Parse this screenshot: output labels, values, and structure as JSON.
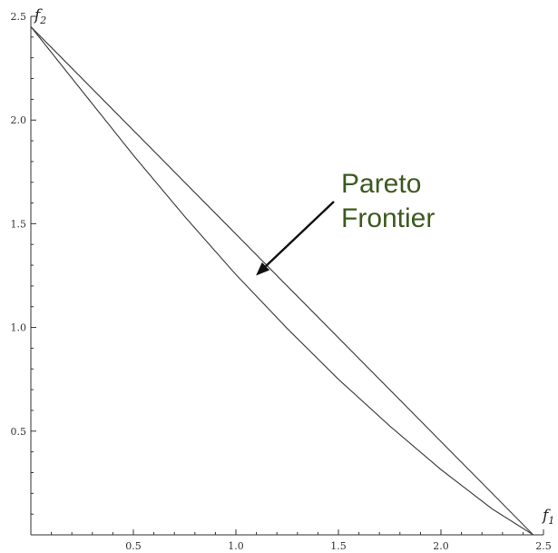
{
  "chart_data": {
    "type": "line",
    "title": "",
    "xlabel": {
      "symbol": "f",
      "subscript": "1"
    },
    "ylabel": {
      "symbol": "f",
      "subscript": "2"
    },
    "xlim": [
      0,
      2.5
    ],
    "ylim": [
      0,
      2.5
    ],
    "x_ticks": [
      "0.5",
      "1.0",
      "1.5",
      "2.0",
      "2.5"
    ],
    "y_ticks": [
      "0.5",
      "1.0",
      "1.5",
      "2.0",
      "2.5"
    ],
    "grid": false,
    "series": [
      {
        "style": "straight-line",
        "x": [
          0,
          2.45
        ],
        "y": [
          2.45,
          0
        ]
      },
      {
        "style": "convex-curve",
        "x": [
          0,
          0.25,
          0.5,
          0.75,
          1.0,
          1.25,
          1.5,
          1.75,
          2.0,
          2.25,
          2.45
        ],
        "y": [
          2.45,
          2.14,
          1.83,
          1.535,
          1.255,
          0.995,
          0.75,
          0.525,
          0.315,
          0.125,
          0
        ]
      }
    ],
    "annotations": [
      {
        "line1": "Pareto",
        "line2": "Frontier",
        "color": "#3d5a1e",
        "arrow_points_to": {
          "x": 1.08,
          "y": 1.25
        }
      }
    ]
  }
}
